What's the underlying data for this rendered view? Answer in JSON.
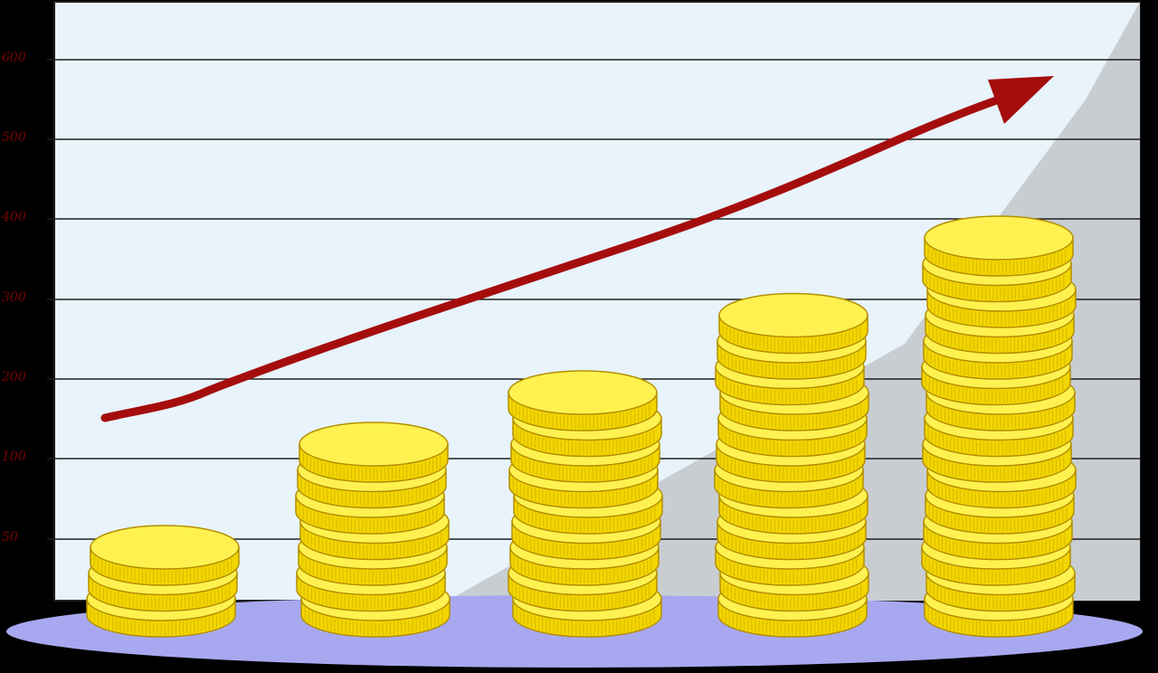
{
  "illustration": {
    "subject": "coin-stacks-growth-chart",
    "colors": {
      "background": "#000000",
      "panel": "#e8f3fb",
      "gridline": "#1f1f1f",
      "shadow": "#c8cdd2",
      "floor": "#a8a8f0",
      "coin_face": "#fff250",
      "coin_edge": "#f2d600",
      "coin_outline": "#b38f00",
      "arrow": "#a50d0d"
    },
    "y_labels": [
      "600",
      "500",
      "400",
      "300",
      "200",
      "100",
      "50"
    ],
    "stacks": [
      {
        "name": "stack-1",
        "coins": 3
      },
      {
        "name": "stack-2",
        "coins": 7
      },
      {
        "name": "stack-3",
        "coins": 9
      },
      {
        "name": "stack-4",
        "coins": 12
      },
      {
        "name": "stack-5",
        "coins": 15
      }
    ],
    "trend": "rising"
  }
}
